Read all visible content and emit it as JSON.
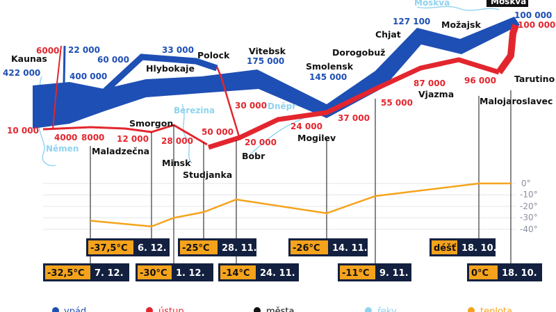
{
  "chart_data": {
    "type": "flow-map",
    "title_badge": "Moskva",
    "colors": {
      "advance": "#1e4fb4",
      "retreat": "#e3262e",
      "city": "#111111",
      "river": "#8fd3ef",
      "temperature": "#f5a31c",
      "badge_temp_bg": "#f5a31c",
      "badge_date_bg": "#13203f"
    },
    "advance_labels": [
      "422 000",
      "400 000",
      "22 000",
      "60 000",
      "33 000",
      "175 000",
      "145 000",
      "127 100",
      "100 000"
    ],
    "retreat_labels": [
      "6000",
      "10 000",
      "4000",
      "8000",
      "12 000",
      "28 000",
      "50 000",
      "20 000",
      "30 000",
      "24 000",
      "37 000",
      "55 000",
      "87 000",
      "96 000",
      "100 000"
    ],
    "cities": [
      "Kaunas",
      "Hlybokaje",
      "Polock",
      "Vitebsk",
      "Smolensk",
      "Dorogobuž",
      "Chjat",
      "Možajsk",
      "Smorgon",
      "Maladzečna",
      "Minsk",
      "Studjanka",
      "Bobr",
      "Mogilev",
      "Vjazma",
      "Tarutino",
      "Malojaroslavec"
    ],
    "rivers": [
      "Němen",
      "Berezina",
      "Dněpr",
      "Moskva"
    ],
    "temperature": {
      "axis_labels": [
        "0°",
        "-10°",
        "-20°",
        "-30°",
        "-40°"
      ],
      "ylim": [
        -40,
        0
      ],
      "points": [
        {
          "temp": -32.5,
          "date": "7. 12."
        },
        {
          "temp": -37.5,
          "date": "6. 12."
        },
        {
          "temp": -30,
          "date": "1. 12."
        },
        {
          "temp": -25,
          "date": "28. 11."
        },
        {
          "temp": -14,
          "date": "24. 11."
        },
        {
          "temp": -26,
          "date": "14. 11."
        },
        {
          "temp": -11,
          "date": "9. 11."
        },
        {
          "temp": 0,
          "date": "18. 10."
        },
        {
          "temp": 0,
          "date": "18. 10."
        }
      ],
      "badges": [
        {
          "temp_label": "-37,5°C",
          "date": "6. 12."
        },
        {
          "temp_label": "-25°C",
          "date": "28. 11."
        },
        {
          "temp_label": "-26°C",
          "date": "14. 11."
        },
        {
          "temp_label": "déšť",
          "date": "18. 10."
        },
        {
          "temp_label": "-32,5°C",
          "date": "7. 12."
        },
        {
          "temp_label": "-30°C",
          "date": "1. 12."
        },
        {
          "temp_label": "-14°C",
          "date": "24. 11."
        },
        {
          "temp_label": "-11°C",
          "date": "9. 11."
        },
        {
          "temp_label": "0°C",
          "date": "18. 10."
        }
      ]
    },
    "legend": [
      "vpád",
      "ústup",
      "města",
      "řeky",
      "teplota"
    ]
  }
}
